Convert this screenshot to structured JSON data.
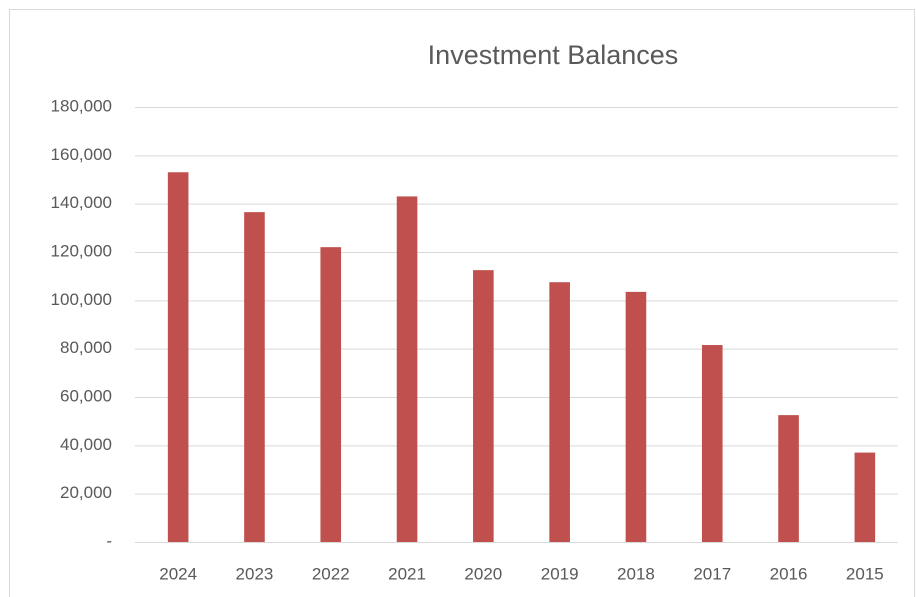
{
  "chart_data": {
    "type": "bar",
    "title": "Investment Balances",
    "categories": [
      "2024",
      "2023",
      "2022",
      "2021",
      "2020",
      "2019",
      "2018",
      "2017",
      "2016",
      "2015"
    ],
    "values": [
      153000,
      136500,
      122000,
      143000,
      112500,
      107500,
      103500,
      81500,
      52500,
      37000
    ],
    "color": "#c0504d",
    "ylim": [
      0,
      180000
    ],
    "yticks": [
      {
        "value": 0,
        "label": "-"
      },
      {
        "value": 20000,
        "label": "20,000"
      },
      {
        "value": 40000,
        "label": "40,000"
      },
      {
        "value": 60000,
        "label": "60,000"
      },
      {
        "value": 80000,
        "label": "80,000"
      },
      {
        "value": 100000,
        "label": "100,000"
      },
      {
        "value": 120000,
        "label": "120,000"
      },
      {
        "value": 140000,
        "label": "140,000"
      },
      {
        "value": 160000,
        "label": "160,000"
      },
      {
        "value": 180000,
        "label": "180,000"
      }
    ],
    "grid": true
  }
}
